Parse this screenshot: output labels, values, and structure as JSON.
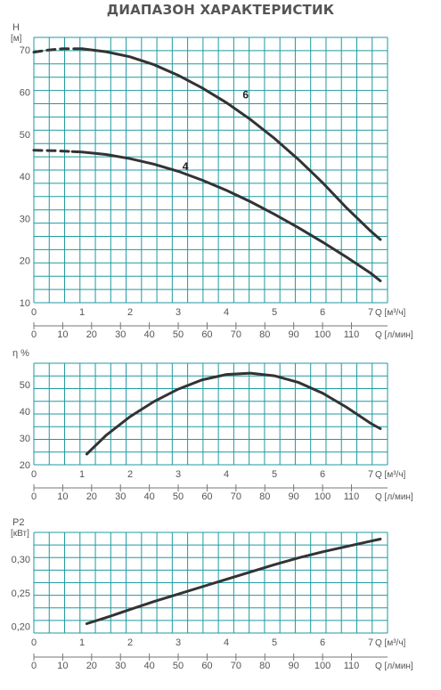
{
  "page_title": "ДИАПАЗОН ХАРАКТЕРИСТИК",
  "colors": {
    "grid": "#1f9aa0",
    "curve": "#333333",
    "text": "#555555"
  },
  "chart_data": [
    {
      "type": "line",
      "ylabel": "H",
      "yunit": "[м]",
      "ylim": [
        10,
        73
      ],
      "yticks": [
        10,
        20,
        30,
        40,
        50,
        60,
        70
      ],
      "xlim": [
        0,
        7.35
      ],
      "xticks": [
        0,
        1,
        2,
        3,
        4,
        5,
        6,
        7
      ],
      "xlabel": "Q [м³/ч]",
      "flow_ticks": [
        0,
        10,
        20,
        30,
        40,
        50,
        60,
        70,
        80,
        90,
        100,
        110
      ],
      "flow_label": "Q [л/мин]",
      "grid": true,
      "series": [
        {
          "name": "6",
          "dashed_until": 1.0,
          "x": [
            0,
            0.3,
            0.6,
            1.0,
            1.5,
            2.0,
            2.5,
            3.0,
            3.5,
            4.0,
            4.5,
            5.0,
            5.5,
            6.0,
            6.5,
            7.0,
            7.2
          ],
          "y": [
            69.5,
            70,
            70.3,
            70.3,
            69.6,
            68.4,
            66.5,
            64,
            61,
            57.5,
            53.5,
            49,
            44,
            38.5,
            32.5,
            27,
            25
          ]
        },
        {
          "name": "4",
          "dashed_until": 0.8,
          "x": [
            0,
            0.4,
            0.8,
            1.0,
            1.5,
            2.0,
            2.5,
            3.0,
            3.5,
            4.0,
            4.5,
            5.0,
            5.5,
            6.0,
            6.5,
            7.0,
            7.2
          ],
          "y": [
            46.2,
            46.1,
            45.9,
            45.8,
            45.2,
            44.2,
            42.9,
            41.2,
            39.1,
            36.7,
            34,
            31,
            27.8,
            24.4,
            20.8,
            17,
            15.2
          ]
        }
      ],
      "annotations": [
        {
          "text": "6",
          "x": 4.4,
          "y": 58.5
        },
        {
          "text": "4",
          "x": 3.15,
          "y": 41.5
        }
      ]
    },
    {
      "type": "line",
      "ylabel": "η %",
      "yunit": "",
      "ylim": [
        20,
        58
      ],
      "yticks": [
        20,
        30,
        40,
        50
      ],
      "xlim": [
        0,
        7.35
      ],
      "xticks": [
        0,
        1,
        2,
        3,
        4,
        5,
        6,
        7
      ],
      "xlabel": "Q [м³/ч]",
      "flow_ticks": [
        0,
        10,
        20,
        30,
        40,
        50,
        60,
        70,
        80,
        90,
        100,
        110
      ],
      "flow_label": "Q [л/мин]",
      "grid": true,
      "series": [
        {
          "name": "",
          "x": [
            1.1,
            1.5,
            2.0,
            2.5,
            3.0,
            3.5,
            4.0,
            4.5,
            5.0,
            5.5,
            6.0,
            6.5,
            7.0,
            7.2
          ],
          "y": [
            24,
            31,
            38,
            43.7,
            48.3,
            51.8,
            53.8,
            54.3,
            53.3,
            50.8,
            46.8,
            41.5,
            35.5,
            33.5
          ]
        }
      ]
    },
    {
      "type": "line",
      "ylabel": "P2",
      "yunit": "[кВт]",
      "ylim": [
        0.19,
        0.34
      ],
      "yticks": [
        "0,20",
        "0,25",
        "0,30"
      ],
      "ytick_values": [
        0.2,
        0.25,
        0.3
      ],
      "xlim": [
        0,
        7.35
      ],
      "xticks": [
        0,
        1,
        2,
        3,
        4,
        5,
        6,
        7
      ],
      "xlabel": "Q [м³/ч]",
      "flow_ticks": [
        0,
        10,
        20,
        30,
        40,
        50,
        60,
        70,
        80,
        90,
        100,
        110
      ],
      "flow_label": "Q [л/мин]",
      "grid": true,
      "series": [
        {
          "name": "",
          "x": [
            1.1,
            1.5,
            2.0,
            2.5,
            3.0,
            3.5,
            4.0,
            4.5,
            5.0,
            5.5,
            6.0,
            6.5,
            7.0,
            7.2
          ],
          "y": [
            0.204,
            0.213,
            0.225,
            0.237,
            0.248,
            0.259,
            0.27,
            0.281,
            0.292,
            0.302,
            0.311,
            0.319,
            0.327,
            0.33
          ]
        }
      ]
    }
  ]
}
